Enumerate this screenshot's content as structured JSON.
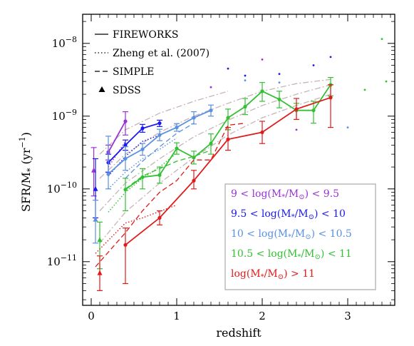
{
  "chart_data": {
    "type": "line",
    "xlabel": "redshift",
    "ylabel": "SFR/M* (yr⁻¹)",
    "xlim": [
      -0.1,
      3.55
    ],
    "ylim_log10": [
      -11.6,
      -7.6
    ],
    "y_scale": "log",
    "x_ticks": [
      0,
      1,
      2,
      3
    ],
    "y_ticks_log10": [
      -11,
      -10,
      -9,
      -8
    ],
    "y_tick_labels": [
      "10⁻¹¹",
      "10⁻¹⁰",
      "10⁻⁹",
      "10⁻⁸"
    ],
    "legend_styles": [
      {
        "label": "FIREWORKS",
        "style": "solid"
      },
      {
        "label": "Zheng et al. (2007)",
        "style": "dotted"
      },
      {
        "label": "SIMPLE",
        "style": "dashed"
      },
      {
        "label": "SDSS",
        "style": "triangle"
      }
    ],
    "series": [
      {
        "name": "9 < log(M*/M⊙) < 9.5",
        "color": "#9b30d9",
        "fireworks_x": [
          0.2,
          0.4
        ],
        "fireworks_y": [
          3.2e-10,
          8.5e-10
        ],
        "fireworks_err_low": [
          2.5e-10,
          5.5e-10
        ],
        "fireworks_err_high": [
          4e-10,
          1.15e-09
        ],
        "zheng_x": [
          0.2,
          0.4
        ],
        "zheng_y": [
          2e-10,
          4.5e-10
        ],
        "sdss": {
          "z": 0.03,
          "y": 1.8e-10,
          "err_low": 8e-11,
          "err_high": 3.7e-10
        },
        "extra_x": [
          1.4,
          2.0,
          2.4
        ],
        "extra_y": [
          2.5e-09,
          6e-09,
          6.5e-10
        ]
      },
      {
        "name": "9.5 < log(M*/M⊙) < 10",
        "color": "#1a1aee",
        "fireworks_x": [
          0.2,
          0.4,
          0.6,
          0.8
        ],
        "fireworks_y": [
          2.3e-10,
          4e-10,
          6.8e-10,
          8e-10
        ],
        "fireworks_err_low": [
          1.7e-10,
          3.4e-10,
          6e-10,
          7.2e-10
        ],
        "fireworks_err_high": [
          3e-10,
          4.7e-10,
          7.7e-10,
          8.8e-10
        ],
        "zheng_x": [
          0.2,
          0.4,
          0.6,
          0.8
        ],
        "zheng_y": [
          1.5e-10,
          2.8e-10,
          4.5e-10,
          5.5e-10
        ],
        "sdss": {
          "z": 0.05,
          "y": 1e-10,
          "err_low": 4e-11,
          "err_high": 2.6e-10
        },
        "extra_x": [
          1.6,
          1.8,
          2.2,
          2.6,
          2.8
        ],
        "extra_y": [
          4.5e-09,
          3.6e-09,
          3.8e-09,
          5e-09,
          6.5e-09
        ]
      },
      {
        "name": "10 < log(M*/M⊙) < 10.5",
        "color": "#5b90e0",
        "fireworks_x": [
          0.2,
          0.4,
          0.6,
          0.8,
          1.0,
          1.2,
          1.4
        ],
        "fireworks_y": [
          1.6e-10,
          2.6e-10,
          3.5e-10,
          5.5e-10,
          7e-10,
          9.5e-10,
          1.2e-09
        ],
        "fireworks_err_low": [
          1e-10,
          1.8e-10,
          2.9e-10,
          4.6e-10,
          6.2e-10,
          7.8e-10,
          1e-09
        ],
        "fireworks_err_high": [
          5.3e-10,
          3.8e-10,
          4.2e-10,
          6.6e-10,
          7.9e-10,
          1.15e-09,
          1.42e-09
        ],
        "zheng_x": [
          0.2,
          0.4,
          0.6,
          0.8,
          1.0
        ],
        "zheng_y": [
          1e-10,
          1.7e-10,
          2.6e-10,
          3.5e-10,
          5e-10
        ],
        "simple_x": [
          0.4,
          0.6,
          0.8,
          1.0,
          1.2
        ],
        "simple_y": [
          1.4e-10,
          2.4e-10,
          3.8e-10,
          5.8e-10,
          8e-10
        ],
        "sdss": {
          "z": 0.05,
          "y": 3.8e-11,
          "err_low": 1.8e-11,
          "err_high": 7e-11
        },
        "extra_x": [
          1.8,
          2.2,
          3.0
        ],
        "extra_y": [
          3.1e-09,
          2.9e-09,
          7e-10
        ]
      },
      {
        "name": "10.5 < log(M*/M⊙) < 11",
        "color": "#33c033",
        "fireworks_x": [
          0.4,
          0.6,
          0.8,
          1.0,
          1.2,
          1.4,
          1.6,
          1.8,
          2.0,
          2.2,
          2.4,
          2.6,
          2.8
        ],
        "fireworks_y": [
          9.8e-11,
          1.45e-10,
          1.55e-10,
          3.6e-10,
          2.7e-10,
          4.2e-10,
          9.5e-10,
          1.35e-09,
          2.2e-09,
          1.7e-09,
          1.2e-09,
          1.2e-09,
          2.7e-09
        ],
        "fireworks_err_low": [
          5e-11,
          1e-10,
          1.2e-10,
          3e-10,
          2.2e-10,
          3e-10,
          6.5e-10,
          1.05e-09,
          1.6e-09,
          1.3e-09,
          9e-10,
          8e-10,
          1.9e-09
        ],
        "fireworks_err_high": [
          1.4e-10,
          1.9e-10,
          2e-10,
          4.3e-10,
          3.3e-10,
          5.7e-10,
          1.25e-09,
          1.75e-09,
          2.9e-09,
          2.2e-09,
          1.5e-09,
          1.6e-09,
          3.4e-09
        ],
        "zheng_x": [
          0.2,
          0.4,
          0.6,
          0.8,
          1.0
        ],
        "zheng_y": [
          4.8e-11,
          9e-11,
          1.4e-10,
          2e-10,
          3.1e-10
        ],
        "simple_x": [
          0.4,
          0.6,
          0.8,
          1.0,
          1.2,
          1.4
        ],
        "simple_y": [
          1e-10,
          1.5e-10,
          1.9e-10,
          2.4e-10,
          2.8e-10,
          3.4e-10
        ],
        "sdss": {
          "z": 0.1,
          "y": 2e-11,
          "err_low": 8e-12,
          "err_high": 3.5e-11
        },
        "extra_x": [
          3.2,
          3.4,
          3.45
        ],
        "extra_y": [
          2.3e-09,
          1.15e-08,
          3e-09
        ]
      },
      {
        "name": "log(M*/M⊙) > 11",
        "color": "#e01a1a",
        "fireworks_x": [
          0.4,
          0.8,
          1.2,
          1.6,
          2.0,
          2.4,
          2.8
        ],
        "fireworks_y": [
          1.7e-11,
          4e-11,
          1.3e-10,
          4.8e-10,
          6e-10,
          1.25e-09,
          1.8e-09
        ],
        "fireworks_err_low": [
          5e-12,
          3.2e-11,
          1e-10,
          3.4e-10,
          4.2e-10,
          9e-10,
          7e-10
        ],
        "fireworks_err_high": [
          2.9e-11,
          5e-11,
          1.8e-10,
          7e-10,
          8.5e-10,
          1.75e-09,
          2.7e-09
        ],
        "zheng_x": [
          0.05,
          0.4,
          0.6,
          0.8,
          1.0
        ],
        "zheng_y": [
          1.3e-11,
          3.4e-11,
          4e-11,
          4.9e-11,
          6e-11
        ],
        "simple_x": [
          0.05,
          0.4,
          0.6,
          0.8,
          1.0,
          1.2,
          1.4,
          1.6,
          1.8
        ],
        "simple_y": [
          8.5e-12,
          2.5e-11,
          5e-11,
          9e-11,
          1.3e-10,
          2.5e-10,
          2.5e-10,
          7.5e-10,
          8e-10
        ],
        "sdss": {
          "z": 0.1,
          "y": 7e-12,
          "err_low": 4e-12,
          "err_high": 1.2e-11
        },
        "extra_x": [],
        "extra_y": []
      }
    ],
    "model_curves": [
      {
        "x": [
          0.1,
          0.4,
          0.8,
          1.2,
          1.6,
          2.0,
          2.4,
          2.8
        ],
        "y": [
          1.8e-11,
          4.8e-11,
          1.2e-10,
          2.7e-10,
          5.5e-10,
          9.5e-10,
          1.4e-09,
          2e-09
        ]
      },
      {
        "x": [
          0.1,
          0.4,
          0.8,
          1.2,
          1.6,
          2.0,
          2.4,
          2.8
        ],
        "y": [
          5e-11,
          1.2e-10,
          2.6e-10,
          5.2e-10,
          8.8e-10,
          1.4e-09,
          2e-09,
          2.7e-09
        ]
      },
      {
        "x": [
          0.1,
          0.4,
          0.8,
          1.2,
          1.6,
          2.0,
          2.4,
          2.8
        ],
        "y": [
          1.4e-10,
          3e-10,
          6e-10,
          1e-09,
          1.5e-09,
          2.2e-09,
          2.8e-09,
          3.2e-09
        ]
      },
      {
        "x": [
          0.1,
          0.4,
          0.8,
          1.2,
          1.6
        ],
        "y": [
          3e-10,
          6.5e-10,
          1.1e-09,
          1.6e-09,
          2.2e-09
        ]
      }
    ]
  },
  "legend": {
    "fireworks": "FIREWORKS",
    "zheng": "Zheng et al. (2007)",
    "simple": "SIMPLE",
    "sdss": "SDSS"
  },
  "mass_legend": [
    {
      "parts": [
        "9 < log(M",
        "*",
        "/M",
        "⊙",
        ") < 9.5"
      ],
      "color": "#9b30d9"
    },
    {
      "parts": [
        "9.5 < log(M",
        "*",
        "/M",
        "⊙",
        ") < 10"
      ],
      "color": "#1a1aee"
    },
    {
      "parts": [
        "10   < log(M",
        "*",
        "/M",
        "⊙",
        ") < 10.5"
      ],
      "color": "#5b90e0"
    },
    {
      "parts": [
        "10.5 < log(M",
        "*",
        "/M",
        "⊙",
        ") < 11"
      ],
      "color": "#33c033"
    },
    {
      "parts": [
        "log(M",
        "*",
        "/M",
        "⊙",
        ") > 11"
      ],
      "color": "#e01a1a"
    }
  ],
  "axis_text": {
    "xlabel": "redshift",
    "ylabel_main": "SFR/M",
    "ylabel_star": "*",
    "ylabel_unit": " (yr",
    "ylabel_exp": "−1",
    "ylabel_close": ")",
    "tick_base": "10",
    "tick_exps": [
      "−11",
      "−10",
      "−9",
      "−8"
    ],
    "xtick_labels": [
      "0",
      "1",
      "2",
      "3"
    ]
  }
}
